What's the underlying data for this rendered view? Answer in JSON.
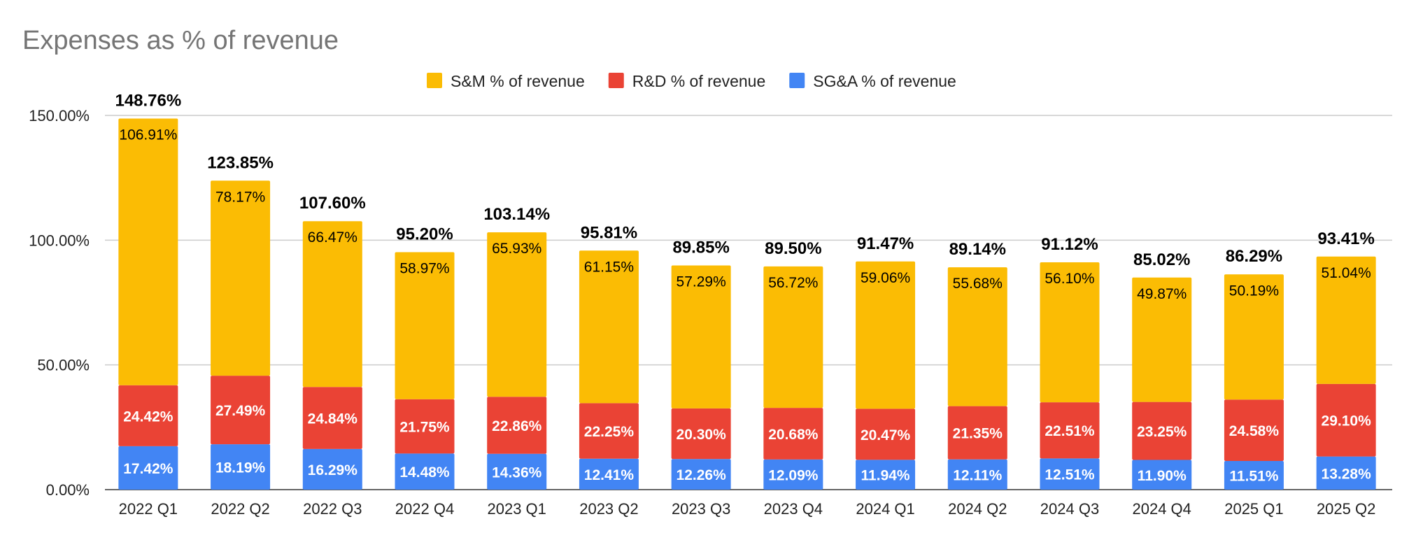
{
  "chart_data": {
    "type": "bar",
    "stacked": true,
    "title": "Expenses as % of revenue",
    "xlabel": "",
    "ylabel": "",
    "ylim": [
      0,
      150
    ],
    "yticks": [
      0,
      50,
      100,
      150
    ],
    "ytick_labels": [
      "0.00%",
      "50.00%",
      "100.00%",
      "150.00%"
    ],
    "grid": true,
    "legend_position": "top",
    "categories": [
      "2022 Q1",
      "2022 Q2",
      "2022 Q3",
      "2022 Q4",
      "2023 Q1",
      "2023 Q2",
      "2023 Q3",
      "2023 Q4",
      "2024 Q1",
      "2024 Q2",
      "2024 Q3",
      "2024 Q4",
      "2025 Q1",
      "2025 Q2"
    ],
    "series": [
      {
        "name": "SG&A % of revenue",
        "color": "#4285f4",
        "label_color": "#ffffff",
        "values": [
          17.42,
          18.19,
          16.29,
          14.48,
          14.36,
          12.41,
          12.26,
          12.09,
          11.94,
          12.11,
          12.51,
          11.9,
          11.51,
          13.28
        ],
        "labels": [
          "17.42%",
          "18.19%",
          "16.29%",
          "14.48%",
          "14.36%",
          "12.41%",
          "12.26%",
          "12.09%",
          "11.94%",
          "12.11%",
          "12.51%",
          "11.90%",
          "11.51%",
          "13.28%"
        ]
      },
      {
        "name": "R&D % of revenue",
        "color": "#ea4335",
        "label_color": "#ffffff",
        "values": [
          24.42,
          27.49,
          24.84,
          21.75,
          22.86,
          22.25,
          20.3,
          20.68,
          20.47,
          21.35,
          22.51,
          23.25,
          24.58,
          29.1
        ],
        "labels": [
          "24.42%",
          "27.49%",
          "24.84%",
          "21.75%",
          "22.86%",
          "22.25%",
          "20.30%",
          "20.68%",
          "20.47%",
          "21.35%",
          "22.51%",
          "23.25%",
          "24.58%",
          "29.10%"
        ]
      },
      {
        "name": "S&M % of revenue",
        "color": "#fbbc04",
        "label_color": "#000000",
        "outside_label_color": "#fbbc04",
        "values": [
          106.91,
          78.17,
          66.47,
          58.97,
          65.93,
          61.15,
          57.29,
          56.72,
          59.06,
          55.68,
          56.1,
          49.87,
          50.19,
          51.04
        ],
        "labels": [
          "106.91%",
          "78.17%",
          "66.47%",
          "58.97%",
          "65.93%",
          "61.15%",
          "57.29%",
          "56.72%",
          "59.06%",
          "55.68%",
          "56.10%",
          "49.87%",
          "50.19%",
          "51.04%"
        ]
      }
    ],
    "legend_order": [
      2,
      1,
      0
    ],
    "totals": [
      148.76,
      123.85,
      107.6,
      95.2,
      103.14,
      95.81,
      89.85,
      89.5,
      91.47,
      89.14,
      91.12,
      85.02,
      86.29,
      93.41
    ],
    "total_labels": [
      "148.76%",
      "123.85%",
      "107.60%",
      "95.20%",
      "103.14%",
      "95.81%",
      "89.85%",
      "89.50%",
      "91.47%",
      "89.14%",
      "91.12%",
      "85.02%",
      "86.29%",
      "93.41%"
    ]
  }
}
